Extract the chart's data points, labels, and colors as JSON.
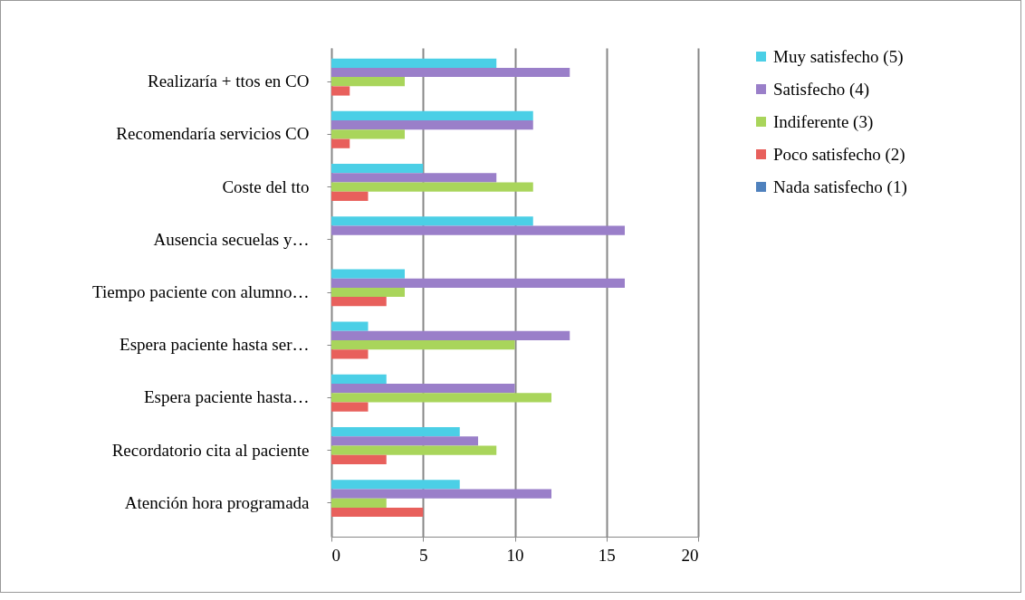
{
  "chart_data": {
    "type": "bar",
    "orientation": "horizontal",
    "categories": [
      "Realizaría + ttos en CO",
      "Recomendaría servicios CO",
      "Coste del tto",
      "Ausencia secuelas y…",
      "Tiempo paciente con alumno…",
      "Espera paciente hasta ser…",
      "Espera paciente hasta…",
      "Recordatorio cita al paciente",
      "Atención hora programada"
    ],
    "series": [
      {
        "name": "Muy satisfecho (5)",
        "color": "#4bcfe6",
        "values": [
          9,
          11,
          5,
          11,
          4,
          2,
          3,
          7,
          7
        ]
      },
      {
        "name": "Satisfecho (4)",
        "color": "#9a7fc9",
        "values": [
          13,
          11,
          9,
          16,
          16,
          13,
          10,
          8,
          12
        ]
      },
      {
        "name": "Indiferente (3)",
        "color": "#a9d55b",
        "values": [
          4,
          4,
          11,
          0,
          4,
          10,
          12,
          9,
          3
        ]
      },
      {
        "name": "Poco satisfecho (2)",
        "color": "#e8605c",
        "values": [
          1,
          1,
          2,
          0,
          3,
          2,
          2,
          3,
          5
        ]
      },
      {
        "name": "Nada satisfecho (1)",
        "color": "#4f81bd",
        "values": [
          0,
          0,
          0,
          0,
          0,
          0,
          0,
          0,
          0
        ]
      }
    ],
    "xlim": [
      0,
      20
    ],
    "xticks": [
      0,
      5,
      10,
      15,
      20
    ],
    "grid": "x",
    "legend": "right"
  }
}
